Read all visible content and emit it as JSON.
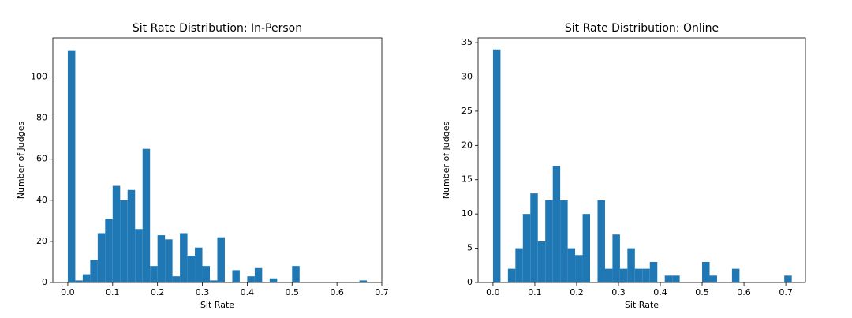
{
  "chart_data": [
    {
      "type": "histogram",
      "title": "Sit Rate Distribution: In-Person",
      "xlabel": "Sit Rate",
      "ylabel": "Number of Judges",
      "color": "#1f77b4",
      "bins": [
        0,
        0.0167,
        0.0333,
        0.05,
        0.0667,
        0.0833,
        0.1,
        0.1167,
        0.1333,
        0.15,
        0.1667,
        0.1833,
        0.2,
        0.2167,
        0.2333,
        0.25,
        0.2667,
        0.2833,
        0.3,
        0.3167,
        0.3333,
        0.35,
        0.3667,
        0.3833,
        0.4,
        0.4167,
        0.4333,
        0.45,
        0.4667,
        0.4833,
        0.5,
        0.5167,
        0.5333,
        0.55,
        0.5667,
        0.5833,
        0.6,
        0.6167,
        0.6333,
        0.65,
        0.6667
      ],
      "values": [
        113,
        1,
        4,
        11,
        24,
        31,
        47,
        40,
        45,
        26,
        65,
        8,
        23,
        21,
        3,
        24,
        13,
        17,
        8,
        1,
        22,
        0,
        6,
        0,
        3,
        7,
        0,
        2,
        0,
        0,
        8,
        0,
        0,
        0,
        0,
        0,
        0,
        0,
        0,
        1
      ],
      "xlim": [
        -0.0333,
        0.7
      ],
      "ylim": [
        0,
        119
      ],
      "xticks": [
        {
          "value": 0,
          "label": "0.0"
        },
        0.1,
        0.2,
        0.3,
        0.4,
        0.5,
        0.6,
        0.7
      ],
      "yticks": [
        0,
        20,
        40,
        60,
        80,
        100
      ]
    },
    {
      "type": "histogram",
      "title": "Sit Rate Distribution: Online",
      "xlabel": "Sit Rate",
      "ylabel": "Number of Judges",
      "color": "#1f77b4",
      "bins": [
        0,
        0.0179,
        0.0357,
        0.0536,
        0.0714,
        0.0893,
        0.1071,
        0.125,
        0.1429,
        0.1607,
        0.1786,
        0.1964,
        0.2143,
        0.2321,
        0.25,
        0.2679,
        0.2857,
        0.3036,
        0.3214,
        0.3393,
        0.3571,
        0.375,
        0.3929,
        0.4107,
        0.4286,
        0.4464,
        0.4643,
        0.4821,
        0.5,
        0.5179,
        0.5357,
        0.5536,
        0.5714,
        0.5893,
        0.6071,
        0.625,
        0.6429,
        0.6607,
        0.6786,
        0.6964,
        0.7143
      ],
      "values": [
        34,
        0,
        2,
        5,
        10,
        13,
        6,
        12,
        17,
        12,
        5,
        4,
        10,
        0,
        12,
        2,
        7,
        2,
        5,
        2,
        2,
        3,
        0,
        1,
        1,
        0,
        0,
        0,
        3,
        1,
        0,
        0,
        2,
        0,
        0,
        0,
        0,
        0,
        0,
        1
      ],
      "xlim": [
        -0.0357,
        0.747
      ],
      "ylim": [
        0,
        35.7
      ],
      "xticks": [
        {
          "value": 0,
          "label": "0.0"
        },
        0.1,
        0.2,
        0.3,
        0.4,
        0.5,
        0.6,
        0.7
      ],
      "yticks": [
        0,
        5,
        10,
        15,
        20,
        25,
        30,
        35
      ]
    }
  ]
}
